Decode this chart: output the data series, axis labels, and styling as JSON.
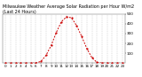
{
  "title": "Milwaukee Weather Average Solar Radiation per Hour W/m2 (Last 24 Hours)",
  "hours": [
    0,
    1,
    2,
    3,
    4,
    5,
    6,
    7,
    8,
    9,
    10,
    11,
    12,
    13,
    14,
    15,
    16,
    17,
    18,
    19,
    20,
    21,
    22,
    23
  ],
  "values": [
    0,
    0,
    0,
    0,
    0,
    0,
    2,
    18,
    80,
    180,
    310,
    420,
    470,
    460,
    380,
    270,
    150,
    55,
    8,
    1,
    0,
    0,
    0,
    0
  ],
  "line_color": "#cc0000",
  "bg_color": "#ffffff",
  "plot_bg": "#ffffff",
  "grid_color": "#aaaaaa",
  "ylim": [
    0,
    500
  ],
  "yticks": [
    100,
    200,
    300,
    400,
    500
  ],
  "tick_fontsize": 3.0,
  "title_fontsize": 3.5
}
